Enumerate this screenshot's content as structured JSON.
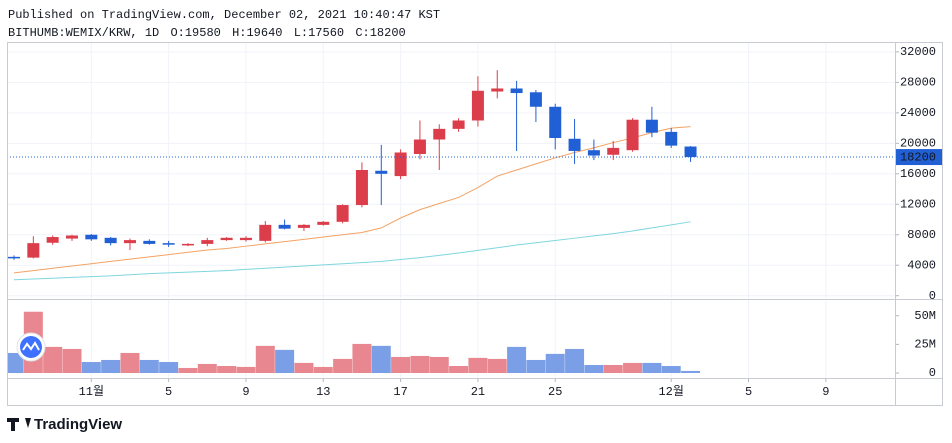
{
  "chart_data": {
    "type": "candlestick",
    "title": "Published on TradingView.com, December 02, 2021 10:40:47 KST",
    "subtitle": "BITHUMB:WEMIX/KRW, 1D",
    "ohlc_labels": {
      "open": "O:",
      "high": "H:",
      "low": "L:",
      "close": "C:"
    },
    "brand": "TradingView",
    "categories": [
      null,
      null,
      null,
      null,
      "11월",
      null,
      null,
      null,
      "5",
      null,
      null,
      null,
      "9",
      null,
      null,
      null,
      "13",
      null,
      null,
      null,
      "17",
      null,
      null,
      null,
      "21",
      null,
      null,
      null,
      "25",
      null,
      null,
      null,
      null,
      null,
      "12월",
      null,
      null,
      null,
      "5",
      null,
      null,
      null,
      "9",
      null,
      null,
      null
    ],
    "open": [
      5100,
      5000,
      6950,
      7500,
      8000,
      7600,
      6900,
      7200,
      6900,
      6600,
      6800,
      7300,
      7300,
      7200,
      9300,
      8900,
      9300,
      9700,
      11900,
      16400,
      15700,
      18600,
      20500,
      21900,
      23000,
      26800,
      27200,
      26700,
      24800,
      20600,
      19100,
      18500,
      19100,
      23100,
      21500,
      19580,
      null,
      null,
      null,
      null,
      null,
      null,
      null,
      null,
      null,
      null
    ],
    "high": [
      5300,
      7800,
      7900,
      8000,
      8100,
      7700,
      7500,
      7400,
      7200,
      6900,
      7600,
      7700,
      7800,
      9800,
      10000,
      9400,
      9800,
      12000,
      17500,
      19800,
      19200,
      23000,
      22500,
      23300,
      28800,
      29600,
      28200,
      27000,
      25200,
      23200,
      20500,
      20300,
      23300,
      24800,
      22000,
      19640,
      null,
      null,
      null,
      null,
      null,
      null,
      null,
      null,
      null,
      null
    ],
    "low": [
      4700,
      4900,
      6700,
      7200,
      7200,
      6600,
      6000,
      6700,
      6400,
      6500,
      6500,
      7200,
      7100,
      7000,
      8700,
      8500,
      9200,
      9500,
      11600,
      11900,
      15300,
      17900,
      16500,
      21500,
      22200,
      25900,
      19000,
      22800,
      19200,
      17300,
      17800,
      17800,
      18900,
      20800,
      19400,
      17560,
      null,
      null,
      null,
      null,
      null,
      null,
      null,
      null,
      null,
      null
    ],
    "close": [
      4900,
      6900,
      7700,
      7900,
      7400,
      6900,
      7300,
      6800,
      6700,
      6800,
      7300,
      7600,
      7600,
      9300,
      8800,
      9300,
      9700,
      11900,
      16500,
      16000,
      18800,
      20500,
      21900,
      23000,
      26900,
      27200,
      26600,
      24800,
      20700,
      19000,
      18400,
      19400,
      23100,
      21400,
      19700,
      18200,
      null,
      null,
      null,
      null,
      null,
      null,
      null,
      null,
      null,
      null
    ],
    "up_color": "#dc3d4b",
    "down_color": "#2160d4",
    "ma_lines": [
      {
        "color": "#f4a263",
        "values": [
          3000,
          3300,
          3600,
          3900,
          4200,
          4500,
          4800,
          5100,
          5400,
          5700,
          6000,
          6200,
          6500,
          6800,
          7100,
          7400,
          7700,
          8000,
          8300,
          8900,
          10200,
          11300,
          12100,
          12900,
          14200,
          15700,
          16500,
          17300,
          18100,
          18800,
          19400,
          20100,
          20700,
          21400,
          22000,
          22200,
          null,
          null,
          null,
          null,
          null,
          null,
          null,
          null,
          null,
          null
        ]
      },
      {
        "color": "#7fd6df",
        "values": [
          2100,
          2200,
          2300,
          2400,
          2500,
          2600,
          2750,
          2900,
          3000,
          3100,
          3200,
          3300,
          3450,
          3600,
          3750,
          3900,
          4050,
          4200,
          4350,
          4500,
          4750,
          5000,
          5300,
          5600,
          5950,
          6300,
          6650,
          6950,
          7250,
          7550,
          7850,
          8150,
          8500,
          8900,
          9300,
          9700,
          null,
          null,
          null,
          null,
          null,
          null,
          null,
          null,
          null,
          null
        ]
      }
    ],
    "ylim": [
      -300,
      33300
    ],
    "yticks": [
      0,
      4000,
      8000,
      12000,
      16000,
      20000,
      24000,
      28000,
      32000
    ],
    "grid": true,
    "last_price_color": "#2160d4",
    "volume": {
      "values": [
        17500000,
        53500000,
        22800000,
        21000000,
        9600000,
        11400000,
        17500000,
        11400000,
        9600000,
        4400000,
        7900000,
        6100000,
        5300000,
        23700000,
        20200000,
        8800000,
        5300000,
        12300000,
        25400000,
        23700000,
        14000000,
        14900000,
        14000000,
        6100000,
        13200000,
        12300000,
        22800000,
        11400000,
        16700000,
        21000000,
        7000000,
        7000000,
        8800000,
        8800000,
        6100000,
        1800000,
        null,
        null,
        null,
        null,
        null,
        null,
        null,
        null,
        null,
        null
      ],
      "up_color": "#e8878f",
      "down_color": "#7b9fe6",
      "ylim": [
        0,
        62000000
      ],
      "yticks": [
        0,
        {
          "value": 25000000,
          "label": "25M"
        },
        {
          "value": 50000000,
          "label": "50M"
        }
      ]
    }
  }
}
